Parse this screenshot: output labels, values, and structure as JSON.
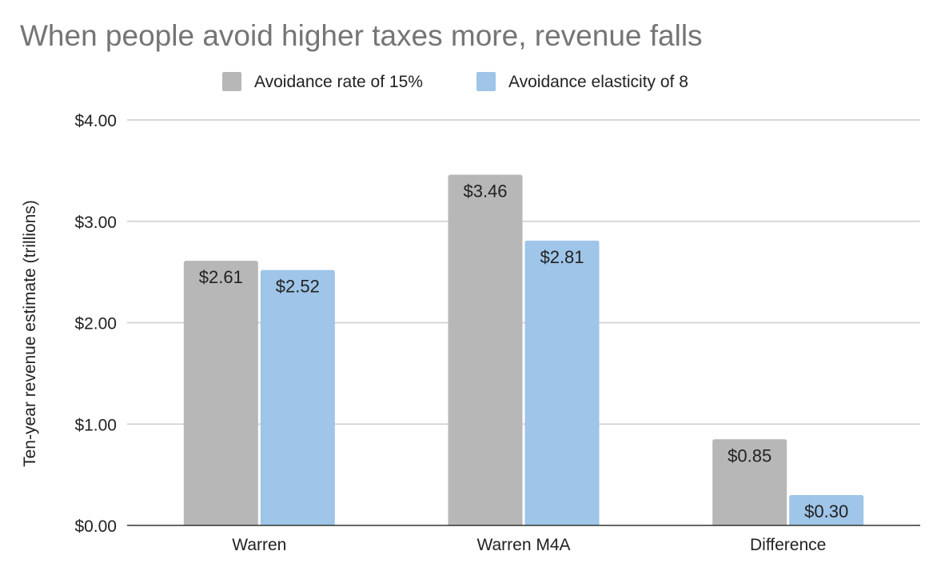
{
  "chart_data": {
    "type": "bar",
    "title": "When people avoid higher taxes more, revenue falls",
    "xlabel": "",
    "ylabel": "Ten-year revenue estimate (trillions)",
    "categories": [
      "Warren",
      "Warren M4A",
      "Difference"
    ],
    "series": [
      {
        "name": "Avoidance rate of 15%",
        "color": "#b7b7b7",
        "values": [
          2.61,
          3.46,
          0.85
        ],
        "labels": [
          "$2.61",
          "$3.46",
          "$0.85"
        ]
      },
      {
        "name": "Avoidance elasticity of 8",
        "color": "#9fc5e8",
        "values": [
          2.52,
          2.81,
          0.3
        ],
        "labels": [
          "$2.52",
          "$2.81",
          "$0.30"
        ]
      }
    ],
    "ylim": [
      0,
      4
    ],
    "yticks": [
      0,
      1,
      2,
      3,
      4
    ],
    "ytick_labels": [
      "$0.00",
      "$1.00",
      "$2.00",
      "$3.00",
      "$4.00"
    ],
    "grid": true,
    "legend_position": "top-center"
  }
}
